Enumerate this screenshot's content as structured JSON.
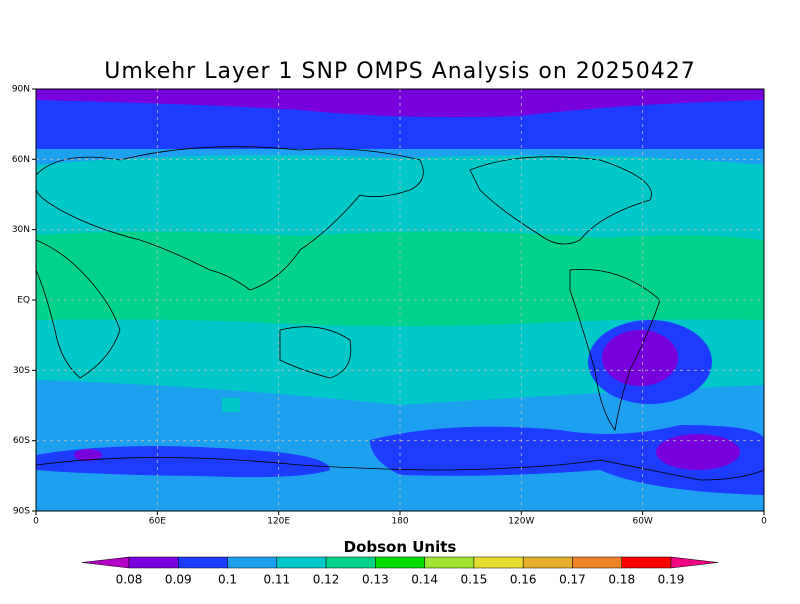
{
  "map": {
    "title": "Umkehr Layer 1 SNP OMPS Analysis on 20250427",
    "lat_labels": [
      "90N",
      "60N",
      "30N",
      "EQ",
      "30S",
      "60S",
      "90S"
    ],
    "lon_labels": [
      "0",
      "60E",
      "120E",
      "180",
      "120W",
      "60W",
      "0"
    ],
    "colorbar": {
      "title": "Dobson Units",
      "levels": [
        0.08,
        0.09,
        0.1,
        0.11,
        0.12,
        0.13,
        0.14,
        0.15,
        0.16,
        0.17,
        0.18,
        0.19
      ],
      "colors": [
        "#b400c8",
        "#7800dc",
        "#1e3cff",
        "#1ea0f0",
        "#00c8c8",
        "#00d28c",
        "#00dc00",
        "#a0e632",
        "#e6dc32",
        "#e6af2d",
        "#f08228",
        "#fa0000",
        "#f00082"
      ]
    }
  }
}
